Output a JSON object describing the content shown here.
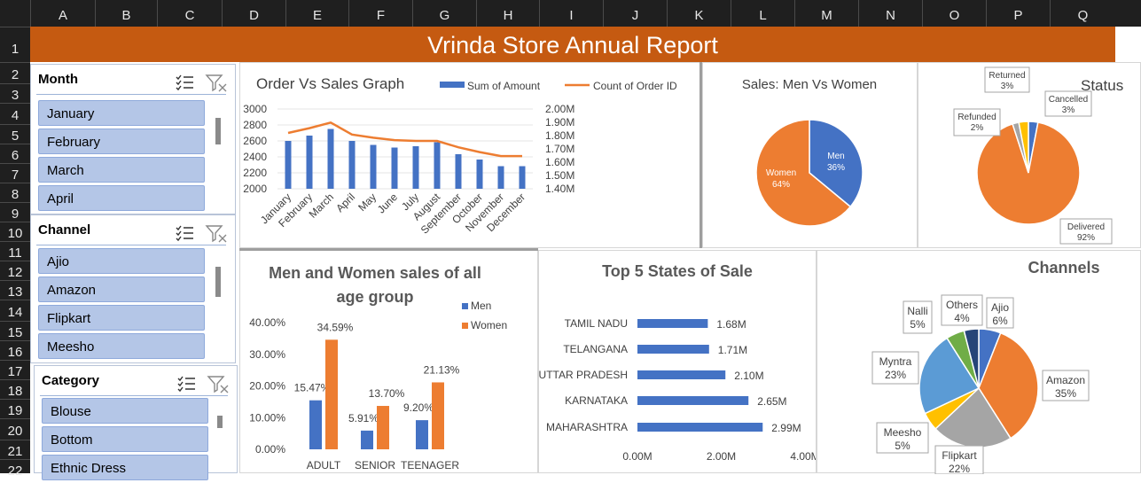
{
  "sheet": {
    "columns": [
      "A",
      "B",
      "C",
      "D",
      "E",
      "F",
      "G",
      "H",
      "I",
      "J",
      "K",
      "L",
      "M",
      "N",
      "O",
      "P",
      "Q"
    ],
    "rows": [
      "1",
      "2",
      "3",
      "4",
      "5",
      "6",
      "7",
      "8",
      "9",
      "10",
      "11",
      "12",
      "13",
      "14",
      "15",
      "16",
      "17",
      "18",
      "19",
      "20",
      "21",
      "22"
    ]
  },
  "title": "Vrinda Store Annual Report",
  "slicers": {
    "month": {
      "header": "Month",
      "items": [
        "January",
        "February",
        "March",
        "April"
      ]
    },
    "channel": {
      "header": "Channel",
      "items": [
        "Ajio",
        "Amazon",
        "Flipkart",
        "Meesho"
      ]
    },
    "category": {
      "header": "Category",
      "items": [
        "Blouse",
        "Bottom",
        "Ethnic Dress"
      ]
    }
  },
  "colors": {
    "title_bg": "#c55a11",
    "blue": "#4472c4",
    "orange": "#ed7d31",
    "gray": "#a5a5a5",
    "yellow": "#ffc000",
    "lightblue": "#5b9bd5",
    "green": "#70ad47",
    "navy": "#264478",
    "slicer_item": "#b4c6e7"
  },
  "chart_data": [
    {
      "type": "bar",
      "title": "Order Vs Sales Graph",
      "categories": [
        "January",
        "February",
        "March",
        "April",
        "May",
        "June",
        "July",
        "August",
        "September",
        "October",
        "November",
        "December"
      ],
      "series": [
        {
          "name": "Sum of Amount",
          "type": "bar",
          "values": [
            1.76,
            1.8,
            1.85,
            1.76,
            1.73,
            1.71,
            1.72,
            1.75,
            1.66,
            1.62,
            1.57,
            1.57
          ]
        },
        {
          "name": "Count of Order ID",
          "type": "line",
          "values": [
            2700,
            2760,
            2830,
            2680,
            2640,
            2610,
            2600,
            2600,
            2520,
            2460,
            2410,
            2410
          ]
        }
      ],
      "y_left": {
        "range": [
          2000,
          3000
        ],
        "ticks": [
          "3000",
          "2800",
          "2600",
          "2400",
          "2200",
          "2000"
        ]
      },
      "y_right": {
        "range": [
          1.4,
          2.0
        ],
        "ticks": [
          "2.00M",
          "1.90M",
          "1.80M",
          "1.70M",
          "1.60M",
          "1.50M",
          "1.40M"
        ]
      },
      "legend": "top"
    },
    {
      "type": "pie",
      "title": "Sales: Men Vs Women",
      "labels": [
        "Men",
        "Women"
      ],
      "values": [
        36,
        64
      ],
      "label_text": [
        "36%",
        "64%"
      ]
    },
    {
      "type": "pie",
      "title": "Status",
      "labels": [
        "Cancelled",
        "Delivered",
        "Refunded",
        "Returned"
      ],
      "values": [
        3,
        92,
        2,
        3
      ],
      "label_text": [
        "3%",
        "92%",
        "2%",
        "3%"
      ]
    },
    {
      "type": "bar",
      "title": "Men and Women sales of all age group",
      "categories": [
        "ADULT",
        "SENIOR",
        "TEENAGER"
      ],
      "series": [
        {
          "name": "Men",
          "values": [
            15.47,
            5.91,
            9.2
          ],
          "labels": [
            "15.47%",
            "5.91%",
            "9.20%"
          ]
        },
        {
          "name": "Women",
          "values": [
            34.59,
            13.7,
            21.13
          ],
          "labels": [
            "34.59%",
            "13.70%",
            "21.13%"
          ]
        }
      ],
      "ylim": [
        0,
        40
      ],
      "yticks": [
        "40.00%",
        "30.00%",
        "20.00%",
        "10.00%",
        "0.00%"
      ],
      "legend": "right"
    },
    {
      "type": "bar",
      "orientation": "horizontal",
      "title": "Top 5 States of Sale",
      "categories": [
        "TAMIL NADU",
        "TELANGANA",
        "UTTAR PRADESH",
        "KARNATAKA",
        "MAHARASHTRA"
      ],
      "values": [
        1.68,
        1.71,
        2.1,
        2.65,
        2.99
      ],
      "labels": [
        "1.68M",
        "1.71M",
        "2.10M",
        "2.65M",
        "2.99M"
      ],
      "xlim": [
        0,
        4
      ],
      "xticks": [
        "0.00M",
        "2.00M",
        "4.00M"
      ]
    },
    {
      "type": "pie",
      "title": "Channels",
      "labels": [
        "Ajio",
        "Amazon",
        "Flipkart",
        "Meesho",
        "Myntra",
        "Nalli",
        "Others"
      ],
      "values": [
        6,
        35,
        22,
        5,
        23,
        5,
        4
      ],
      "label_text": [
        "6%",
        "35%",
        "22%",
        "5%",
        "23%",
        "5%",
        "4%"
      ]
    }
  ]
}
